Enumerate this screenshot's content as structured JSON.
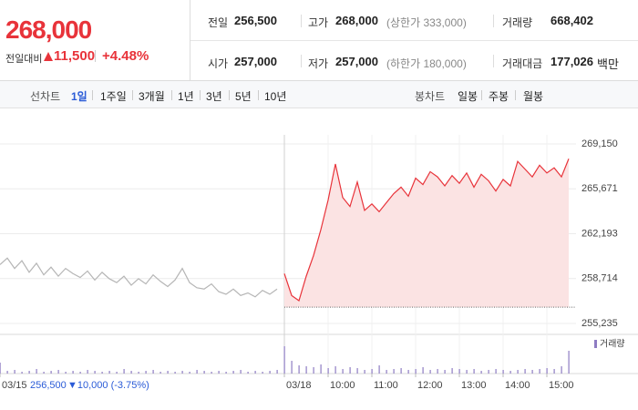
{
  "header": {
    "price": "268,000",
    "change_label": "전일대비",
    "change": "11,500",
    "change_rate": "+4.48%",
    "stats": [
      {
        "label": "전일",
        "value": "256,500"
      },
      {
        "label": "고가",
        "value": "268,000",
        "note": "(상한가 333,000)"
      },
      {
        "label": "거래량",
        "value": "668,402"
      },
      {
        "label": "시가",
        "value": "257,000"
      },
      {
        "label": "저가",
        "value": "257,000",
        "note": "(하한가 180,000)"
      },
      {
        "label": "거래대금",
        "value": "177,026",
        "unit": "백만"
      }
    ]
  },
  "tabs": {
    "line_label": "선차트",
    "line_items": [
      "1일",
      "1주일",
      "3개월",
      "1년",
      "3년",
      "5년",
      "10년"
    ],
    "candle_label": "봉차트",
    "candle_items": [
      "일봉",
      "주봉",
      "월봉"
    ]
  },
  "chart_data": {
    "type": "line",
    "xlim": [
      0,
      790
    ],
    "xticks": [
      {
        "value": 0,
        "label": "03/15"
      },
      {
        "value": 390,
        "label": "03/18"
      },
      {
        "value": 450,
        "label": "10:00"
      },
      {
        "value": 510,
        "label": "11:00"
      },
      {
        "value": 570,
        "label": "12:00"
      },
      {
        "value": 630,
        "label": "13:00"
      },
      {
        "value": 690,
        "label": "14:00"
      },
      {
        "value": 750,
        "label": "15:00"
      }
    ],
    "ylim": [
      255235,
      269150
    ],
    "yticks": [
      {
        "value": 269150,
        "label": "269,150"
      },
      {
        "value": 265671,
        "label": "265,671"
      },
      {
        "value": 262193,
        "label": "262,193"
      },
      {
        "value": 258714,
        "label": "258,714"
      },
      {
        "value": 255235,
        "label": "255,235"
      }
    ],
    "grid": true,
    "prev_close": {
      "value": 256500,
      "label": "256,500"
    },
    "prev_change": "▼10,000 (-3.75%)",
    "series": [
      {
        "color": "#b5b5b5",
        "x": [
          0,
          10,
          20,
          30,
          40,
          50,
          60,
          70,
          80,
          90,
          100,
          110,
          120,
          130,
          140,
          150,
          160,
          170,
          180,
          190,
          200,
          210,
          220,
          230,
          240,
          250,
          260,
          270,
          280,
          290,
          300,
          310,
          320,
          330,
          340,
          350,
          360,
          370,
          380
        ],
        "values": [
          259800,
          260300,
          259500,
          260100,
          259200,
          259900,
          259000,
          259600,
          258900,
          259500,
          259100,
          258800,
          259300,
          258600,
          259200,
          258700,
          258400,
          258900,
          258200,
          258700,
          258300,
          259000,
          258500,
          258100,
          258600,
          259500,
          258400,
          258000,
          257900,
          258300,
          257700,
          257500,
          257900,
          257400,
          257600,
          257300,
          257800,
          257500,
          257900
        ]
      },
      {
        "color": "#e8333a",
        "fill": "#fbe3e3",
        "x": [
          390,
          400,
          410,
          420,
          430,
          440,
          450,
          460,
          470,
          480,
          490,
          500,
          510,
          520,
          530,
          540,
          550,
          560,
          570,
          580,
          590,
          600,
          610,
          620,
          630,
          640,
          650,
          660,
          670,
          680,
          690,
          700,
          710,
          720,
          730,
          740,
          750,
          760,
          770,
          780
        ],
        "values": [
          259100,
          257400,
          257000,
          258900,
          260500,
          262500,
          264800,
          267600,
          265000,
          264300,
          266200,
          264000,
          264500,
          263900,
          264600,
          265300,
          265800,
          265100,
          266500,
          266000,
          267000,
          266600,
          265900,
          266700,
          266100,
          266900,
          265800,
          266800,
          266300,
          265500,
          266400,
          265900,
          267800,
          267200,
          266600,
          267500,
          266900,
          267300,
          266600,
          268000
        ]
      }
    ],
    "volume": {
      "name": "거래량",
      "color": "#8e7cc3",
      "ylim": [
        0,
        40
      ],
      "x": [
        0,
        10,
        20,
        30,
        40,
        50,
        60,
        70,
        80,
        90,
        100,
        110,
        120,
        130,
        140,
        150,
        160,
        170,
        180,
        190,
        200,
        210,
        220,
        230,
        240,
        250,
        260,
        270,
        280,
        290,
        300,
        310,
        320,
        330,
        340,
        350,
        360,
        370,
        380,
        390,
        400,
        410,
        420,
        430,
        440,
        450,
        460,
        470,
        480,
        490,
        500,
        510,
        520,
        530,
        540,
        550,
        560,
        570,
        580,
        590,
        600,
        610,
        620,
        630,
        640,
        650,
        660,
        670,
        680,
        690,
        700,
        710,
        720,
        730,
        740,
        750,
        760,
        770,
        780
      ],
      "values": [
        12,
        3,
        4,
        2,
        3,
        5,
        2,
        3,
        4,
        2,
        3,
        2,
        4,
        3,
        2,
        3,
        2,
        5,
        3,
        2,
        3,
        4,
        2,
        3,
        2,
        3,
        2,
        4,
        3,
        2,
        3,
        2,
        3,
        4,
        2,
        3,
        2,
        3,
        4,
        30,
        14,
        9,
        8,
        7,
        10,
        6,
        8,
        5,
        7,
        6,
        4,
        5,
        9,
        4,
        5,
        6,
        4,
        5,
        7,
        4,
        5,
        4,
        6,
        5,
        4,
        5,
        3,
        4,
        5,
        4,
        3,
        4,
        5,
        4,
        5,
        6,
        5,
        8,
        25
      ]
    }
  }
}
